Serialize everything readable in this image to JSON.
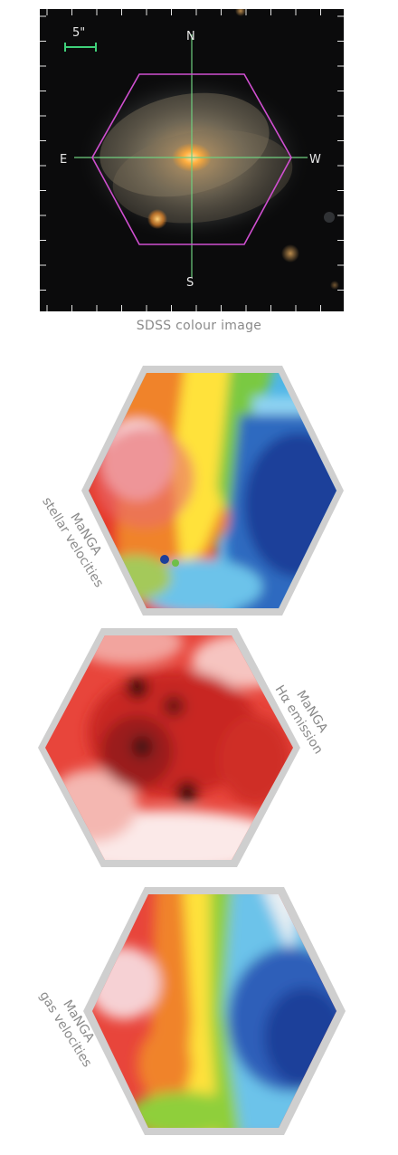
{
  "sdss": {
    "scale_label": "5\"",
    "north": "N",
    "south": "S",
    "east": "E",
    "west": "W",
    "caption": "SDSS colour image"
  },
  "maps": {
    "stellar": {
      "line1": "MaNGA",
      "line2": "stellar velocities"
    },
    "halpha": {
      "line1": "MaNGA",
      "line2": "Hα emission"
    },
    "gas": {
      "line1": "MaNGA",
      "line2": "gas velocities"
    }
  },
  "colors": {
    "hexagon_outline": "#d04fd0",
    "crosshair": "#6fcf7f",
    "scale_bar": "#3fd07a",
    "hex_border_gray": "#cfcfcf",
    "label_gray": "#8a8a8a"
  }
}
